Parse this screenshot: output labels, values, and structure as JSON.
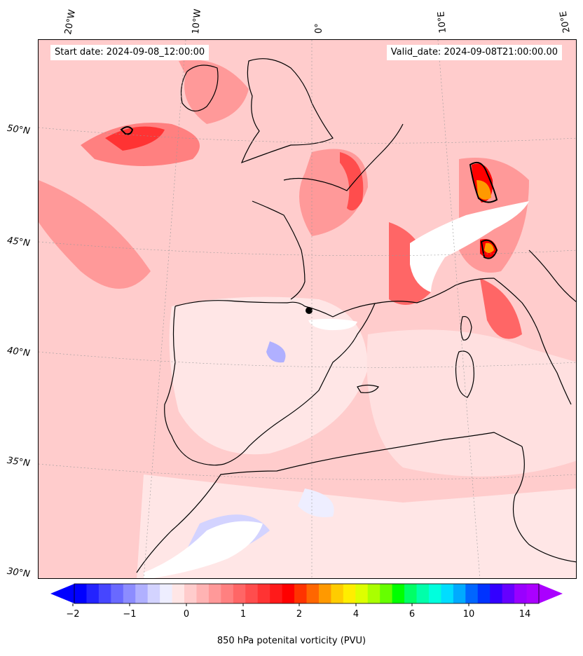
{
  "header": {
    "start_date": "Start date: 2024-09-08_12:00:00",
    "valid_date": "Valid_date: 2024-09-08T21:00:00.00"
  },
  "longitude_labels": [
    "20°W",
    "10°W",
    "0°",
    "10°E",
    "20°E"
  ],
  "latitude_labels": [
    "50°N",
    "45°N",
    "40°N",
    "35°N",
    "30°N"
  ],
  "colorbar": {
    "title": "850 hPa potenital vorticity (PVU)",
    "tick_labels": [
      "−2",
      "−1",
      "0",
      "1",
      "2",
      "4",
      "6",
      "10",
      "14"
    ],
    "colors": [
      "#0000ff",
      "#2323ff",
      "#4646ff",
      "#6969ff",
      "#8c8cff",
      "#b0b0ff",
      "#d3d3ff",
      "#eeeeff",
      "#ffe6e6",
      "#ffcccc",
      "#ffb3b3",
      "#ff9999",
      "#ff8080",
      "#ff6666",
      "#ff4d4d",
      "#ff3333",
      "#ff1a1a",
      "#ff0000",
      "#ff3300",
      "#ff6600",
      "#ff9900",
      "#ffcc00",
      "#ffee00",
      "#ddff00",
      "#aaff00",
      "#66ff00",
      "#00ff00",
      "#00ff66",
      "#00ffaa",
      "#00ffdd",
      "#00ddff",
      "#00aaff",
      "#0066ff",
      "#0033ff",
      "#3300ff",
      "#6600ff",
      "#9900ff",
      "#aa00ff"
    ],
    "low_extend_color": "#0000ff",
    "high_extend_color": "#aa00ff"
  }
}
